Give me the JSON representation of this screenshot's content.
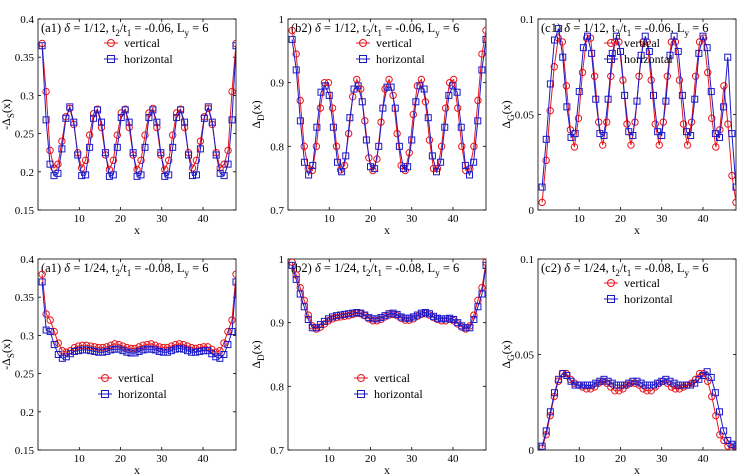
{
  "figure": {
    "background": "#ffffff"
  },
  "style": {
    "vertical_color": "#e8151b",
    "horizontal_color": "#1a18c8",
    "axis_color": "#000000"
  },
  "chart_data": [
    {
      "type": "line",
      "panel_id": "a1-top",
      "title": "(a1) δ = 1/12, t2/t1 = -0.06, Ly = 6",
      "title_parts": {
        "label": "(a1)",
        "delta": "1/12",
        "t_ratio": "-0.06",
        "Ly": "6"
      },
      "xlabel": "x",
      "ylabel": "-ΔS(x)",
      "ylabel_main": "-Δ",
      "ylabel_sub": "S",
      "ylabel_tail": "(x)",
      "xlim": [
        0,
        48
      ],
      "ylim": [
        0.15,
        0.4
      ],
      "xticks": [
        10,
        20,
        30,
        40
      ],
      "yticks": [
        0.15,
        0.2,
        0.25,
        0.3,
        0.35,
        0.4
      ],
      "ytick_labels": [
        "0.15",
        "0.2",
        "0.25",
        "0.3",
        "0.35",
        "0.4"
      ],
      "legend_position": "top-right",
      "series": [
        {
          "name": "vertical",
          "marker": "circle",
          "values": [
            0.368,
            0.305,
            0.228,
            0.205,
            0.21,
            0.24,
            0.272,
            0.283,
            0.262,
            0.225,
            0.205,
            0.215,
            0.248,
            0.276,
            0.282,
            0.258,
            0.222,
            0.203,
            0.215,
            0.248,
            0.277,
            0.282,
            0.258,
            0.222,
            0.203,
            0.215,
            0.248,
            0.277,
            0.283,
            0.258,
            0.222,
            0.203,
            0.215,
            0.248,
            0.277,
            0.282,
            0.258,
            0.225,
            0.205,
            0.215,
            0.24,
            0.272,
            0.283,
            0.262,
            0.225,
            0.205,
            0.21,
            0.228,
            0.305,
            0.368
          ]
        },
        {
          "name": "horizontal",
          "marker": "square",
          "values": [
            0.365,
            0.268,
            0.21,
            0.195,
            0.198,
            0.23,
            0.27,
            0.285,
            0.265,
            0.222,
            0.195,
            0.196,
            0.232,
            0.27,
            0.281,
            0.265,
            0.225,
            0.194,
            0.196,
            0.232,
            0.271,
            0.281,
            0.265,
            0.225,
            0.194,
            0.196,
            0.232,
            0.271,
            0.281,
            0.265,
            0.225,
            0.194,
            0.196,
            0.232,
            0.271,
            0.281,
            0.265,
            0.222,
            0.195,
            0.196,
            0.23,
            0.27,
            0.285,
            0.265,
            0.222,
            0.198,
            0.195,
            0.21,
            0.268,
            0.365
          ]
        }
      ]
    },
    {
      "type": "line",
      "panel_id": "b2-top",
      "title": "(b2) δ = 1/12, t2/t1 = -0.06, Ly = 6",
      "title_parts": {
        "label": "(b2)",
        "delta": "1/12",
        "t_ratio": "-0.06",
        "Ly": "6"
      },
      "xlabel": "x",
      "ylabel": "ΔD(x)",
      "ylabel_main": "Δ",
      "ylabel_sub": "D",
      "ylabel_tail": "(x)",
      "xlim": [
        0,
        48
      ],
      "ylim": [
        0.7,
        1.0
      ],
      "xticks": [
        10,
        20,
        30,
        40
      ],
      "yticks": [
        0.7,
        0.8,
        0.9,
        1.0
      ],
      "ytick_labels": [
        "0.7",
        "0.8",
        "0.9",
        "1"
      ],
      "legend_position": "top-right",
      "series": [
        {
          "name": "vertical",
          "marker": "circle",
          "values": [
            0.982,
            0.945,
            0.872,
            0.8,
            0.765,
            0.762,
            0.8,
            0.86,
            0.9,
            0.9,
            0.86,
            0.8,
            0.763,
            0.77,
            0.82,
            0.878,
            0.905,
            0.89,
            0.84,
            0.782,
            0.762,
            0.78,
            0.838,
            0.89,
            0.905,
            0.88,
            0.82,
            0.77,
            0.762,
            0.79,
            0.85,
            0.895,
            0.905,
            0.87,
            0.81,
            0.765,
            0.765,
            0.8,
            0.86,
            0.9,
            0.905,
            0.86,
            0.8,
            0.762,
            0.765,
            0.8,
            0.872,
            0.945,
            0.982
          ]
        },
        {
          "name": "horizontal",
          "marker": "square",
          "values": [
            0.968,
            0.92,
            0.84,
            0.775,
            0.755,
            0.77,
            0.83,
            0.885,
            0.895,
            0.88,
            0.83,
            0.775,
            0.76,
            0.785,
            0.845,
            0.89,
            0.895,
            0.87,
            0.81,
            0.768,
            0.765,
            0.8,
            0.86,
            0.893,
            0.893,
            0.86,
            0.8,
            0.765,
            0.768,
            0.81,
            0.87,
            0.895,
            0.89,
            0.845,
            0.785,
            0.76,
            0.775,
            0.83,
            0.88,
            0.895,
            0.885,
            0.83,
            0.77,
            0.755,
            0.775,
            0.84,
            0.92,
            0.968
          ]
        }
      ]
    },
    {
      "type": "line",
      "panel_id": "c1-top",
      "title": "(c1) δ = 1/12, t2/t1 = -0.06, Ly = 6",
      "title_parts": {
        "label": "(c1)",
        "delta": "1/12",
        "t_ratio": "-0.06",
        "Ly": "6"
      },
      "xlabel": "x",
      "ylabel": "ΔG(x)",
      "ylabel_main": "Δ",
      "ylabel_sub": "G",
      "ylabel_tail": "(x)",
      "xlim": [
        0,
        48
      ],
      "ylim": [
        0,
        0.1
      ],
      "xticks": [
        10,
        20,
        30,
        40
      ],
      "yticks": [
        0,
        0.05,
        0.1
      ],
      "ytick_labels": [
        "0",
        "0.05",
        "0.1"
      ],
      "legend_position": "top-right",
      "series": [
        {
          "name": "vertical",
          "marker": "circle",
          "values": [
            0.004,
            0.026,
            0.052,
            0.075,
            0.09,
            0.088,
            0.065,
            0.042,
            0.033,
            0.048,
            0.072,
            0.09,
            0.09,
            0.07,
            0.046,
            0.034,
            0.046,
            0.07,
            0.088,
            0.088,
            0.068,
            0.045,
            0.034,
            0.046,
            0.07,
            0.088,
            0.088,
            0.068,
            0.045,
            0.034,
            0.046,
            0.07,
            0.088,
            0.088,
            0.068,
            0.045,
            0.034,
            0.046,
            0.07,
            0.088,
            0.09,
            0.072,
            0.048,
            0.033,
            0.042,
            0.065,
            0.045,
            0.018,
            0.004
          ]
        },
        {
          "name": "horizontal",
          "marker": "square",
          "values": [
            0.012,
            0.037,
            0.066,
            0.089,
            0.095,
            0.08,
            0.054,
            0.038,
            0.04,
            0.062,
            0.085,
            0.091,
            0.082,
            0.058,
            0.04,
            0.039,
            0.058,
            0.082,
            0.091,
            0.083,
            0.06,
            0.041,
            0.039,
            0.057,
            0.081,
            0.091,
            0.083,
            0.06,
            0.041,
            0.039,
            0.057,
            0.081,
            0.091,
            0.083,
            0.06,
            0.041,
            0.039,
            0.058,
            0.082,
            0.091,
            0.085,
            0.062,
            0.04,
            0.038,
            0.054,
            0.08,
            0.04,
            0.012
          ]
        }
      ]
    },
    {
      "type": "line",
      "panel_id": "a1-bottom",
      "title": "(a1) δ = 1/24, t2/t1 = -0.08, Ly = 6",
      "title_parts": {
        "label": "(a1)",
        "delta": "1/24",
        "t_ratio": "-0.08",
        "Ly": "6"
      },
      "xlabel": "x",
      "ylabel": "-ΔS(x)",
      "ylabel_main": "-Δ",
      "ylabel_sub": "S",
      "ylabel_tail": "(x)",
      "xlim": [
        0,
        48
      ],
      "ylim": [
        0.15,
        0.4
      ],
      "xticks": [
        10,
        20,
        30,
        40
      ],
      "yticks": [
        0.15,
        0.2,
        0.25,
        0.3,
        0.35,
        0.4
      ],
      "ytick_labels": [
        "0.15",
        "0.2",
        "0.25",
        "0.3",
        "0.35",
        "0.4"
      ],
      "legend_position": "bottom-center",
      "series": [
        {
          "name": "vertical",
          "marker": "circle",
          "values": [
            0.38,
            0.328,
            0.32,
            0.305,
            0.29,
            0.28,
            0.278,
            0.28,
            0.284,
            0.286,
            0.287,
            0.287,
            0.286,
            0.285,
            0.284,
            0.284,
            0.285,
            0.287,
            0.289,
            0.288,
            0.286,
            0.284,
            0.283,
            0.283,
            0.285,
            0.287,
            0.288,
            0.289,
            0.287,
            0.285,
            0.284,
            0.284,
            0.286,
            0.288,
            0.289,
            0.288,
            0.286,
            0.284,
            0.283,
            0.284,
            0.285,
            0.285,
            0.282,
            0.278,
            0.28,
            0.29,
            0.305,
            0.32,
            0.38
          ]
        },
        {
          "name": "horizontal",
          "marker": "square",
          "values": [
            0.37,
            0.307,
            0.305,
            0.288,
            0.275,
            0.27,
            0.272,
            0.276,
            0.279,
            0.28,
            0.281,
            0.281,
            0.28,
            0.279,
            0.278,
            0.278,
            0.279,
            0.281,
            0.282,
            0.282,
            0.28,
            0.278,
            0.277,
            0.277,
            0.279,
            0.281,
            0.282,
            0.282,
            0.281,
            0.279,
            0.278,
            0.278,
            0.28,
            0.282,
            0.283,
            0.282,
            0.28,
            0.278,
            0.278,
            0.279,
            0.28,
            0.28,
            0.276,
            0.272,
            0.27,
            0.275,
            0.288,
            0.305,
            0.37
          ]
        }
      ]
    },
    {
      "type": "line",
      "panel_id": "b2-bottom",
      "title": "(b2) δ = 1/24, t2/t1 = -0.08, Ly = 6",
      "title_parts": {
        "label": "(b2)",
        "delta": "1/24",
        "t_ratio": "-0.08",
        "Ly": "6"
      },
      "xlabel": "x",
      "ylabel": "ΔD(x)",
      "ylabel_main": "Δ",
      "ylabel_sub": "D",
      "ylabel_tail": "(x)",
      "xlim": [
        0,
        48
      ],
      "ylim": [
        0.7,
        1.0
      ],
      "xticks": [
        10,
        20,
        30,
        40
      ],
      "yticks": [
        0.7,
        0.8,
        0.9,
        1.0
      ],
      "ytick_labels": [
        "0.7",
        "0.8",
        "0.9",
        "1"
      ],
      "legend_position": "bottom-center",
      "series": [
        {
          "name": "vertical",
          "marker": "circle",
          "values": [
            0.995,
            0.975,
            0.955,
            0.935,
            0.912,
            0.895,
            0.89,
            0.893,
            0.898,
            0.903,
            0.906,
            0.908,
            0.909,
            0.91,
            0.911,
            0.913,
            0.915,
            0.914,
            0.911,
            0.906,
            0.903,
            0.903,
            0.905,
            0.909,
            0.912,
            0.913,
            0.911,
            0.907,
            0.904,
            0.904,
            0.906,
            0.91,
            0.913,
            0.914,
            0.912,
            0.908,
            0.905,
            0.903,
            0.903,
            0.905,
            0.903,
            0.898,
            0.893,
            0.89,
            0.895,
            0.912,
            0.935,
            0.955,
            0.995
          ]
        },
        {
          "name": "horizontal",
          "marker": "square",
          "values": [
            0.99,
            0.968,
            0.945,
            0.925,
            0.905,
            0.892,
            0.892,
            0.897,
            0.902,
            0.906,
            0.909,
            0.911,
            0.912,
            0.913,
            0.914,
            0.915,
            0.916,
            0.915,
            0.912,
            0.908,
            0.906,
            0.906,
            0.908,
            0.911,
            0.914,
            0.915,
            0.913,
            0.909,
            0.907,
            0.907,
            0.909,
            0.912,
            0.915,
            0.916,
            0.914,
            0.91,
            0.907,
            0.906,
            0.906,
            0.907,
            0.905,
            0.9,
            0.895,
            0.892,
            0.892,
            0.905,
            0.925,
            0.945,
            0.99
          ]
        }
      ]
    },
    {
      "type": "line",
      "panel_id": "c2-bottom",
      "title": "(c2) δ = 1/24, t2/t1 = -0.08, Ly = 6",
      "title_parts": {
        "label": "(c2)",
        "delta": "1/24",
        "t_ratio": "-0.08",
        "Ly": "6"
      },
      "xlabel": "x",
      "ylabel": "ΔG(x)",
      "ylabel_main": "Δ",
      "ylabel_sub": "G",
      "ylabel_tail": "(x)",
      "xlim": [
        0,
        48
      ],
      "ylim": [
        0,
        0.1
      ],
      "xticks": [
        10,
        20,
        30,
        40
      ],
      "yticks": [
        0,
        0.05,
        0.1
      ],
      "ytick_labels": [
        "0",
        "0.05",
        "0.1"
      ],
      "legend_position": "top-right",
      "series": [
        {
          "name": "vertical",
          "marker": "circle",
          "values": [
            0.001,
            0.008,
            0.018,
            0.028,
            0.036,
            0.04,
            0.04,
            0.037,
            0.035,
            0.034,
            0.033,
            0.032,
            0.032,
            0.033,
            0.035,
            0.036,
            0.035,
            0.033,
            0.031,
            0.031,
            0.032,
            0.034,
            0.035,
            0.035,
            0.034,
            0.032,
            0.031,
            0.031,
            0.033,
            0.035,
            0.036,
            0.035,
            0.033,
            0.032,
            0.032,
            0.033,
            0.034,
            0.035,
            0.037,
            0.04,
            0.04,
            0.036,
            0.028,
            0.018,
            0.008,
            0.005,
            0.002,
            0.001,
            0.001
          ]
        },
        {
          "name": "horizontal",
          "marker": "square",
          "values": [
            0.002,
            0.01,
            0.02,
            0.03,
            0.037,
            0.04,
            0.039,
            0.036,
            0.034,
            0.034,
            0.034,
            0.034,
            0.034,
            0.035,
            0.036,
            0.037,
            0.036,
            0.035,
            0.034,
            0.034,
            0.034,
            0.035,
            0.036,
            0.036,
            0.035,
            0.034,
            0.034,
            0.034,
            0.035,
            0.036,
            0.037,
            0.036,
            0.035,
            0.034,
            0.034,
            0.034,
            0.034,
            0.035,
            0.037,
            0.039,
            0.041,
            0.038,
            0.03,
            0.02,
            0.01,
            0.005,
            0.003,
            0.002
          ]
        }
      ]
    }
  ]
}
